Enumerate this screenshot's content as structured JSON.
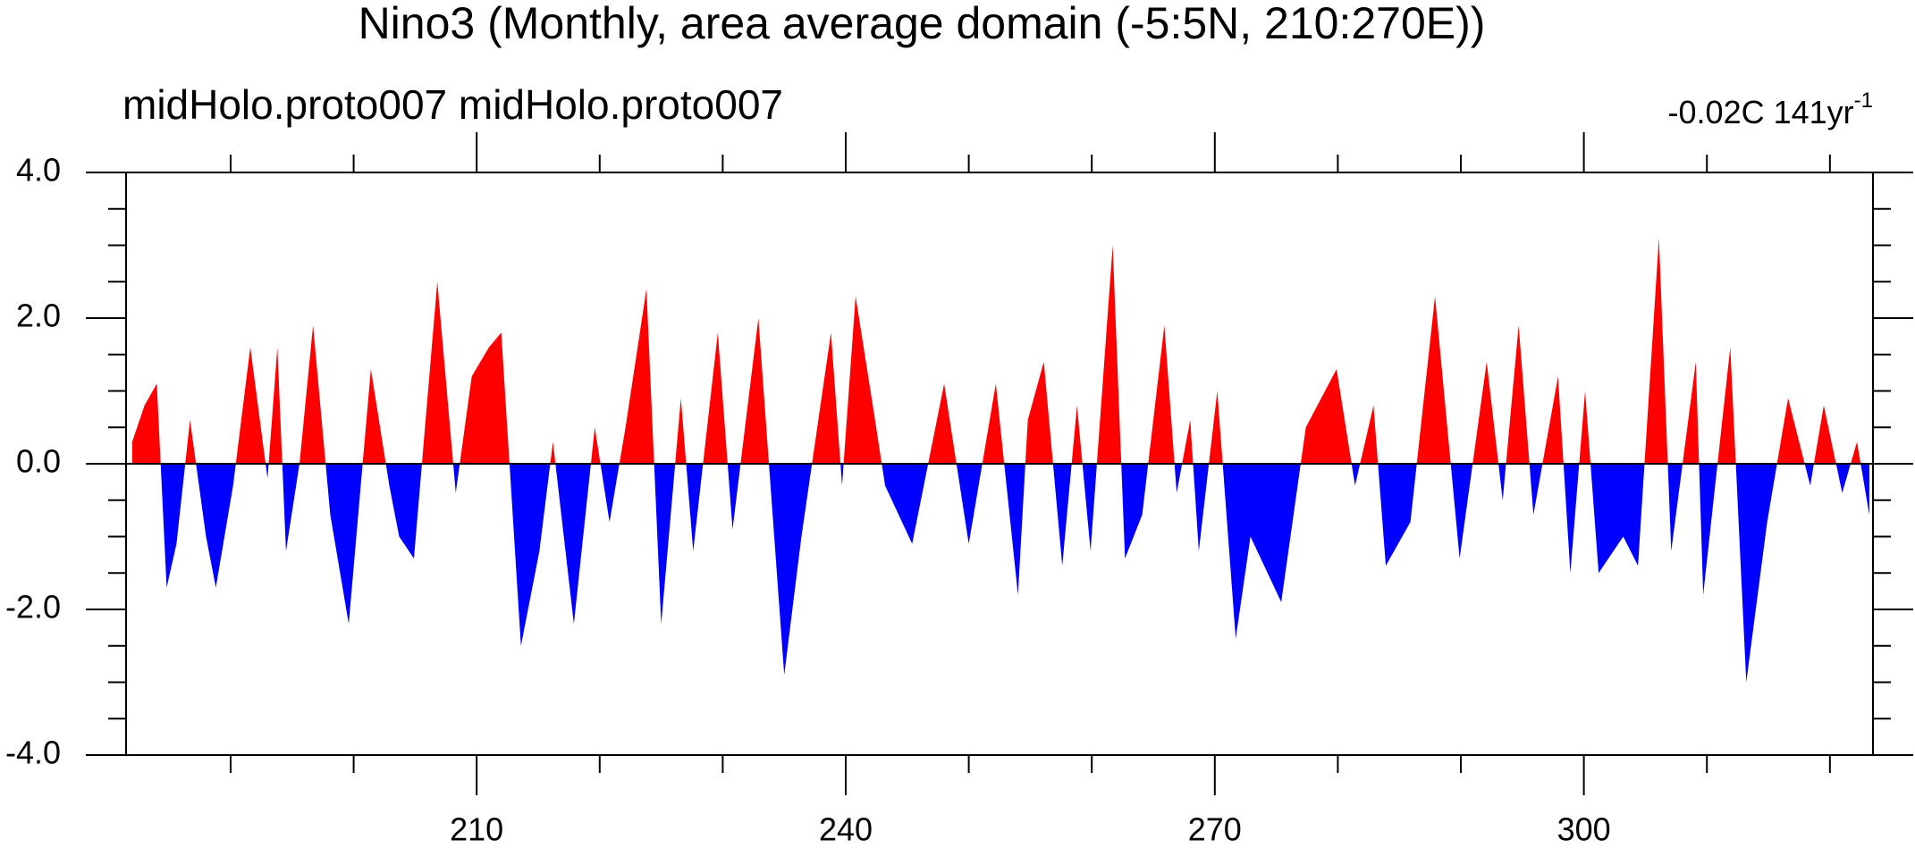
{
  "chart_data": {
    "type": "area",
    "title": "Nino3 (Monthly, area average domain (-5:5N, 210:270E))",
    "subtitle_left": "midHolo.proto007  midHolo.proto007",
    "right_label": {
      "text": "-0.02C 141yr",
      "superscript": "-1"
    },
    "x": [
      182,
      183,
      184,
      184.8,
      185.6,
      186.7,
      188,
      188.8,
      190.2,
      191.6,
      193,
      193.8,
      194.5,
      195.6,
      196.7,
      198.1,
      199.6,
      201.4,
      202.9,
      203.7,
      204.9,
      206.8,
      208.3,
      209.6,
      211,
      212,
      213.6,
      215.1,
      216.2,
      217.9,
      219.6,
      220.8,
      222.1,
      223.8,
      225,
      226.6,
      227.6,
      229.6,
      230.8,
      232.9,
      235,
      236.4,
      238.8,
      239.7,
      240.8,
      242.2,
      243.2,
      245.4,
      248,
      250,
      252.2,
      254,
      254.8,
      256.1,
      257.6,
      258.8,
      259.9,
      261.7,
      262.7,
      264.1,
      265.9,
      266.9,
      268,
      268.7,
      270.2,
      271.7,
      272.9,
      275.4,
      277.4,
      279.9,
      281.4,
      282.9,
      283.9,
      285.9,
      287.9,
      289.9,
      292.1,
      293.4,
      294.7,
      295.9,
      297.9,
      298.9,
      300.1,
      301.2,
      303.2,
      304.4,
      306.1,
      307.1,
      309.1,
      309.7,
      311.9,
      313.2,
      314.9,
      316.6,
      318.4,
      319.5,
      321,
      322.2,
      323.2
    ],
    "values": [
      0.3,
      0.8,
      1.1,
      -1.7,
      -1.1,
      0.6,
      -1.0,
      -1.7,
      -0.3,
      1.6,
      -0.2,
      1.6,
      -1.2,
      0,
      1.9,
      -0.7,
      -2.2,
      1.3,
      -0.3,
      -1.0,
      -1.3,
      2.5,
      -0.4,
      1.2,
      1.6,
      1.8,
      -2.5,
      -1.2,
      0.3,
      -2.2,
      0.5,
      -0.8,
      0.5,
      2.4,
      -2.2,
      0.9,
      -1.2,
      1.8,
      -0.9,
      2.0,
      -2.9,
      -1.0,
      1.8,
      -0.3,
      2.3,
      0.8,
      -0.3,
      -1.1,
      1.1,
      -1.1,
      1.1,
      -1.8,
      0.6,
      1.4,
      -1.4,
      0.8,
      -1.2,
      3.0,
      -1.3,
      -0.7,
      1.9,
      -0.4,
      0.6,
      -1.2,
      1.0,
      -2.4,
      -1.0,
      -1.9,
      0.5,
      1.3,
      -0.3,
      0.8,
      -1.4,
      -0.8,
      2.3,
      -1.3,
      1.4,
      -0.5,
      1.9,
      -0.7,
      1.2,
      -1.5,
      1.0,
      -1.5,
      -1.0,
      -1.4,
      3.1,
      -1.2,
      1.4,
      -1.8,
      1.6,
      -3.0,
      -0.8,
      0.9,
      -0.3,
      0.8,
      -0.4,
      0.3,
      -0.7
    ],
    "pos_color": "#ff0000",
    "neg_color": "#0000ff",
    "xlim": [
      181.5,
      323.5
    ],
    "xticks": [
      210,
      240,
      270,
      300
    ],
    "xminorticks": [
      190,
      200,
      220,
      230,
      250,
      260,
      280,
      290,
      310,
      320
    ],
    "ylim": [
      -4,
      4
    ],
    "yticks": [
      {
        "value": -4,
        "label": "-4.0"
      },
      {
        "value": -2,
        "label": "-2.0"
      },
      {
        "value": 0,
        "label": "0.0"
      },
      {
        "value": 2,
        "label": "2.0"
      },
      {
        "value": 4,
        "label": "4.0"
      }
    ],
    "yminorticks": [
      -3.5,
      -3,
      -2.5,
      -1.5,
      -1,
      -0.5,
      0.5,
      1,
      1.5,
      2.5,
      3,
      3.5
    ]
  }
}
